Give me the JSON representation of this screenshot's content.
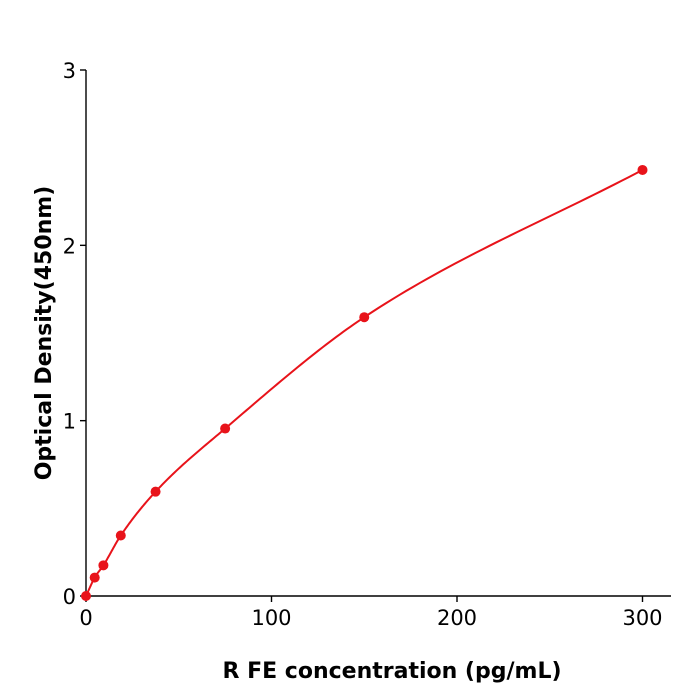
{
  "chart_data": {
    "type": "scatter",
    "title": "",
    "xlabel": "R  FE concentration (pg/mL)",
    "ylabel": "Optical Density(450nm)",
    "xlim": [
      0,
      315
    ],
    "ylim": [
      0,
      3
    ],
    "xticks": [
      0,
      100,
      200,
      300
    ],
    "yticks": [
      0,
      1,
      2,
      3
    ],
    "grid": false,
    "legend": "none",
    "series": [
      {
        "x": [
          0,
          4.69,
          9.38,
          18.75,
          37.5,
          75,
          150,
          300
        ],
        "y": [
          0.0,
          0.105,
          0.175,
          0.345,
          0.595,
          0.955,
          1.59,
          2.43
        ],
        "color": "#e8131a",
        "fit": "curve"
      }
    ]
  }
}
